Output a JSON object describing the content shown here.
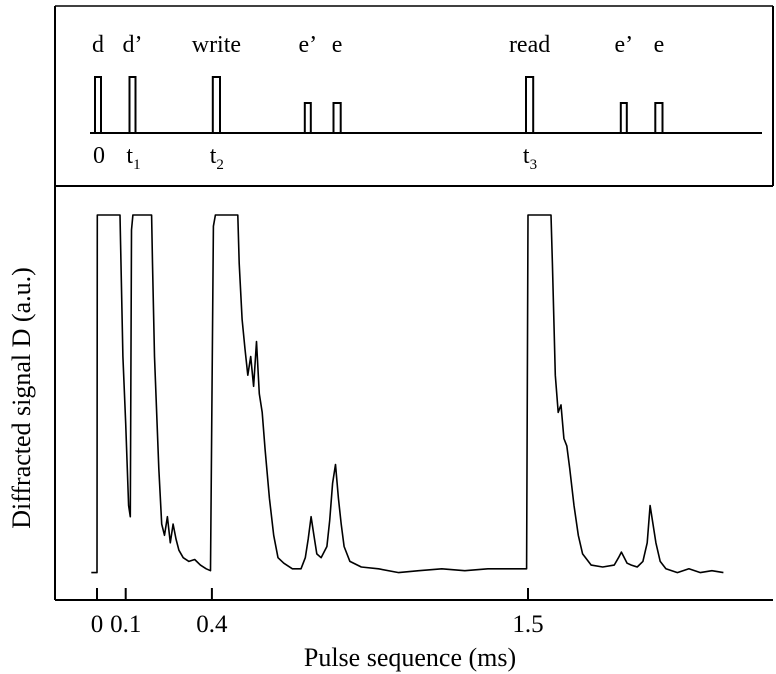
{
  "chart_data": [
    {
      "type": "timing-diagram",
      "title": "",
      "baseline_label": "",
      "pulses": [
        {
          "name": "d",
          "t": 0.0,
          "height": 1.0,
          "width": 0.02
        },
        {
          "name": "d’",
          "t": 0.12,
          "height": 1.0,
          "width": 0.02
        },
        {
          "name": "write",
          "t": 0.41,
          "height": 1.0,
          "width": 0.025
        },
        {
          "name": "e’",
          "t": 0.73,
          "height": 0.5,
          "width": 0.02
        },
        {
          "name": "e",
          "t": 0.83,
          "height": 0.5,
          "width": 0.025
        },
        {
          "name": "read",
          "t": 1.5,
          "height": 1.0,
          "width": 0.025
        },
        {
          "name": "e’",
          "t": 1.83,
          "height": 0.5,
          "width": 0.02
        },
        {
          "name": "e",
          "t": 1.95,
          "height": 0.5,
          "width": 0.025
        }
      ],
      "time_labels": [
        {
          "t": 0.0,
          "base": "0",
          "sub": ""
        },
        {
          "t": 0.12,
          "base": "t",
          "sub": "1"
        },
        {
          "t": 0.41,
          "base": "t",
          "sub": "2"
        },
        {
          "t": 1.5,
          "base": "t",
          "sub": "3"
        }
      ]
    },
    {
      "type": "line",
      "title": "",
      "xlabel": "Pulse sequence (ms)",
      "ylabel": "Diffracted signal D (a.u.)",
      "xlim": [
        -0.14,
        2.2
      ],
      "ylim": [
        0,
        1
      ],
      "x_ticks": [
        0,
        0.1,
        0.4,
        1.5
      ],
      "x_tick_labels": [
        "0",
        "0.1",
        "0.4",
        "1.5"
      ],
      "y_ticks_labeled": false,
      "grid": false,
      "series": [
        {
          "name": "",
          "points": [
            [
              -0.02,
              0.02
            ],
            [
              0.0,
              0.02
            ],
            [
              0.001,
              0.98
            ],
            [
              0.08,
              0.98
            ],
            [
              0.082,
              0.9
            ],
            [
              0.09,
              0.6
            ],
            [
              0.1,
              0.42
            ],
            [
              0.11,
              0.2
            ],
            [
              0.116,
              0.17
            ],
            [
              0.12,
              0.94
            ],
            [
              0.125,
              0.98
            ],
            [
              0.19,
              0.98
            ],
            [
              0.193,
              0.85
            ],
            [
              0.2,
              0.6
            ],
            [
              0.215,
              0.3
            ],
            [
              0.225,
              0.15
            ],
            [
              0.235,
              0.12
            ],
            [
              0.245,
              0.17
            ],
            [
              0.255,
              0.1
            ],
            [
              0.265,
              0.15
            ],
            [
              0.275,
              0.11
            ],
            [
              0.285,
              0.08
            ],
            [
              0.3,
              0.06
            ],
            [
              0.32,
              0.05
            ],
            [
              0.34,
              0.055
            ],
            [
              0.36,
              0.04
            ],
            [
              0.38,
              0.03
            ],
            [
              0.395,
              0.025
            ],
            [
              0.405,
              0.95
            ],
            [
              0.412,
              0.98
            ],
            [
              0.49,
              0.98
            ],
            [
              0.495,
              0.85
            ],
            [
              0.505,
              0.7
            ],
            [
              0.515,
              0.62
            ],
            [
              0.525,
              0.55
            ],
            [
              0.535,
              0.6
            ],
            [
              0.545,
              0.52
            ],
            [
              0.555,
              0.64
            ],
            [
              0.565,
              0.5
            ],
            [
              0.575,
              0.45
            ],
            [
              0.585,
              0.35
            ],
            [
              0.6,
              0.22
            ],
            [
              0.615,
              0.12
            ],
            [
              0.63,
              0.06
            ],
            [
              0.65,
              0.045
            ],
            [
              0.68,
              0.03
            ],
            [
              0.71,
              0.03
            ],
            [
              0.725,
              0.06
            ],
            [
              0.735,
              0.11
            ],
            [
              0.745,
              0.17
            ],
            [
              0.755,
              0.12
            ],
            [
              0.765,
              0.07
            ],
            [
              0.78,
              0.06
            ],
            [
              0.8,
              0.09
            ],
            [
              0.81,
              0.16
            ],
            [
              0.82,
              0.26
            ],
            [
              0.83,
              0.31
            ],
            [
              0.84,
              0.22
            ],
            [
              0.85,
              0.15
            ],
            [
              0.86,
              0.09
            ],
            [
              0.88,
              0.05
            ],
            [
              0.92,
              0.035
            ],
            [
              0.98,
              0.03
            ],
            [
              1.05,
              0.02
            ],
            [
              1.12,
              0.025
            ],
            [
              1.2,
              0.03
            ],
            [
              1.28,
              0.025
            ],
            [
              1.36,
              0.03
            ],
            [
              1.44,
              0.03
            ],
            [
              1.495,
              0.03
            ],
            [
              1.5,
              0.98
            ],
            [
              1.58,
              0.98
            ],
            [
              1.585,
              0.85
            ],
            [
              1.595,
              0.55
            ],
            [
              1.605,
              0.45
            ],
            [
              1.615,
              0.47
            ],
            [
              1.625,
              0.38
            ],
            [
              1.635,
              0.36
            ],
            [
              1.645,
              0.3
            ],
            [
              1.66,
              0.2
            ],
            [
              1.675,
              0.12
            ],
            [
              1.69,
              0.07
            ],
            [
              1.72,
              0.04
            ],
            [
              1.76,
              0.035
            ],
            [
              1.8,
              0.04
            ],
            [
              1.815,
              0.06
            ],
            [
              1.825,
              0.075
            ],
            [
              1.835,
              0.06
            ],
            [
              1.845,
              0.045
            ],
            [
              1.86,
              0.04
            ],
            [
              1.88,
              0.035
            ],
            [
              1.9,
              0.05
            ],
            [
              1.915,
              0.1
            ],
            [
              1.925,
              0.2
            ],
            [
              1.935,
              0.15
            ],
            [
              1.945,
              0.1
            ],
            [
              1.96,
              0.05
            ],
            [
              1.98,
              0.03
            ],
            [
              2.02,
              0.02
            ],
            [
              2.06,
              0.03
            ],
            [
              2.1,
              0.02
            ],
            [
              2.14,
              0.025
            ],
            [
              2.18,
              0.02
            ]
          ]
        }
      ]
    }
  ]
}
